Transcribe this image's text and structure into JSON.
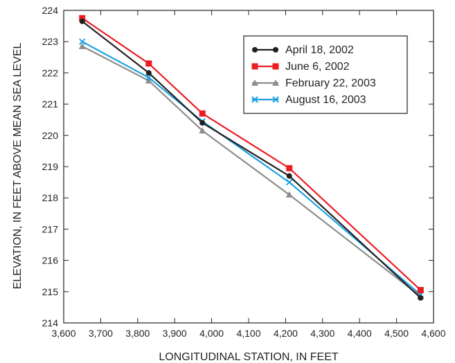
{
  "chart_data": {
    "type": "line",
    "title": "",
    "xlabel": "LONGITUDINAL STATION, IN FEET",
    "ylabel": "ELEVATION, IN FEET ABOVE MEAN SEA LEVEL",
    "xlim": [
      3600,
      4600
    ],
    "ylim": [
      214,
      224
    ],
    "xticks": [
      3600,
      3700,
      3800,
      3900,
      4000,
      4100,
      4200,
      4300,
      4400,
      4500,
      4600
    ],
    "yticks": [
      214,
      215,
      216,
      217,
      218,
      219,
      220,
      221,
      222,
      223,
      224
    ],
    "xtick_labels": [
      "3,600",
      "3,700",
      "3,800",
      "3,900",
      "4,000",
      "4,100",
      "4,200",
      "4,300",
      "4,400",
      "4,500",
      "4,600"
    ],
    "ytick_labels": [
      "214",
      "215",
      "216",
      "217",
      "218",
      "219",
      "220",
      "221",
      "222",
      "223",
      "224"
    ],
    "grid": false,
    "legend_position": "top-right",
    "x": [
      3650,
      3830,
      3975,
      4210,
      4565
    ],
    "series": [
      {
        "name": "April 18, 2002",
        "color": "#231f20",
        "marker": "circle",
        "values": [
          223.65,
          222.0,
          220.4,
          218.7,
          214.8
        ]
      },
      {
        "name": "June 6, 2002",
        "color": "#ed1c24",
        "marker": "square",
        "values": [
          223.75,
          222.3,
          220.7,
          218.95,
          215.05
        ]
      },
      {
        "name": "February 22, 2003",
        "color": "#8c8c8c",
        "marker": "triangle",
        "values": [
          222.85,
          221.75,
          220.15,
          218.1,
          214.85
        ]
      },
      {
        "name": "August 16, 2003",
        "color": "#1ba1e2",
        "marker": "x",
        "values": [
          223.0,
          221.85,
          220.45,
          218.5,
          214.9
        ]
      }
    ]
  }
}
